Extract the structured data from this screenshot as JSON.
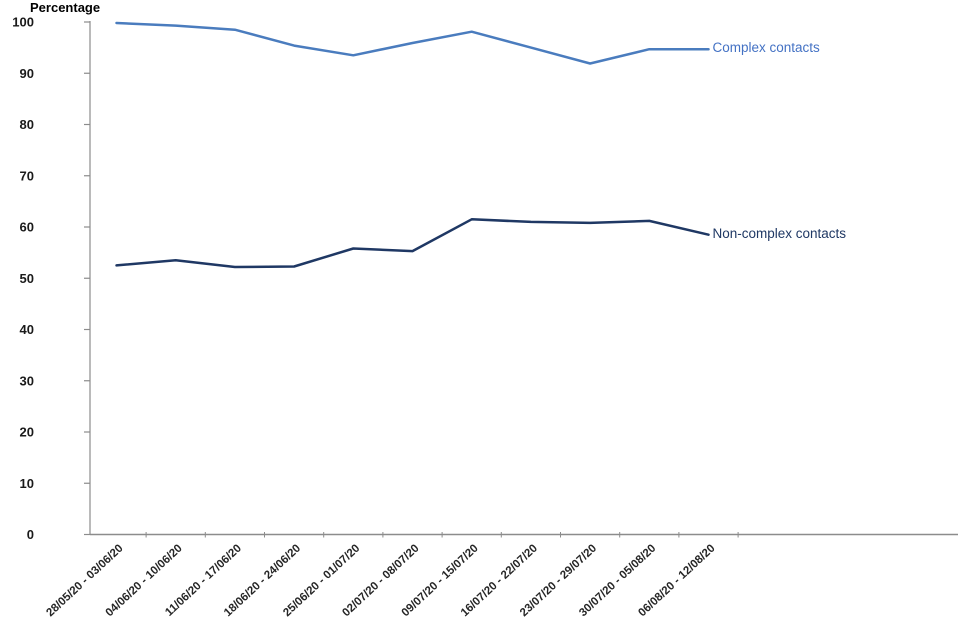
{
  "chart_data": {
    "type": "line",
    "title": "Percentage",
    "xlabel": "",
    "ylabel": "Percentage",
    "ylim": [
      0,
      100
    ],
    "ytick_step": 10,
    "yticks": [
      0,
      10,
      20,
      30,
      40,
      50,
      60,
      70,
      80,
      90,
      100
    ],
    "grid": false,
    "legend_position": "line-end-labels",
    "axis_color": "#8c8c8c",
    "categories": [
      "28/05/20 - 03/06/20",
      "04/06/20 - 10/06/20",
      "11/06/20 - 17/06/20",
      "18/06/20 - 24/06/20",
      "25/06/20 - 01/07/20",
      "02/07/20 - 08/07/20",
      "09/07/20 - 15/07/20",
      "16/07/20 - 22/07/20",
      "23/07/20 - 29/07/20",
      "30/07/20 - 05/08/20",
      "06/08/20 - 12/08/20"
    ],
    "series": [
      {
        "name": "Complex contacts",
        "color": "#4a7cbe",
        "label_color": "#4472c4",
        "values": [
          99.8,
          99.3,
          98.5,
          95.4,
          93.5,
          95.9,
          98.1,
          95.0,
          91.9,
          94.7,
          94.7
        ]
      },
      {
        "name": "Non-complex contacts",
        "color": "#1f3864",
        "label_color": "#1f3864",
        "values": [
          52.5,
          53.5,
          52.2,
          52.3,
          55.8,
          55.3,
          61.5,
          61.0,
          60.8,
          61.2,
          58.5
        ]
      }
    ]
  }
}
